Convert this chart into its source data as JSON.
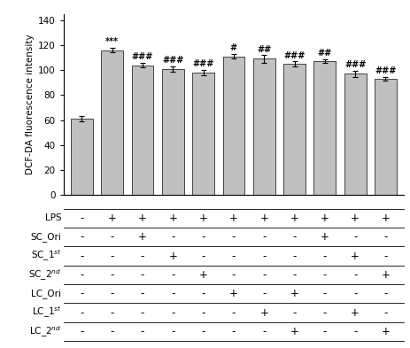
{
  "bar_values": [
    61,
    116,
    104,
    101,
    98,
    111,
    109,
    105,
    107,
    97,
    93
  ],
  "bar_errors": [
    2,
    2,
    2,
    2,
    2,
    2,
    3,
    2,
    1.5,
    2.5,
    1.5
  ],
  "bar_color": "#c0c0c0",
  "bar_edgecolor": "#444444",
  "ylabel": "DCF-DA fluorescence intensity",
  "ylim": [
    0,
    145
  ],
  "yticks": [
    0,
    20,
    40,
    60,
    80,
    100,
    120,
    140
  ],
  "annotations": [
    {
      "text": "***",
      "bar_idx": 1
    },
    {
      "text": "###",
      "bar_idx": 2
    },
    {
      "text": "###",
      "bar_idx": 3
    },
    {
      "text": "###",
      "bar_idx": 4
    },
    {
      "text": "#",
      "bar_idx": 5
    },
    {
      "text": "##",
      "bar_idx": 6
    },
    {
      "text": "###",
      "bar_idx": 7
    },
    {
      "text": "##",
      "bar_idx": 8
    },
    {
      "text": "###",
      "bar_idx": 9
    },
    {
      "text": "###",
      "bar_idx": 10
    }
  ],
  "table_rows": [
    "LPS",
    "SC_Ori",
    "SC_1$^{st}$",
    "SC_2$^{nd}$",
    "LC_Ori",
    "LC_1$^{st}$",
    "LC_2$^{nd}$"
  ],
  "table_data": [
    [
      "-",
      "+",
      "+",
      "+",
      "+",
      "+",
      "+",
      "+",
      "+",
      "+",
      "+"
    ],
    [
      "-",
      "-",
      "+",
      "-",
      "-",
      "-",
      "-",
      "-",
      "+",
      "-",
      "-"
    ],
    [
      "-",
      "-",
      "-",
      "+",
      "-",
      "-",
      "-",
      "-",
      "-",
      "+",
      "-"
    ],
    [
      "-",
      "-",
      "-",
      "-",
      "+",
      "-",
      "-",
      "-",
      "-",
      "-",
      "+"
    ],
    [
      "-",
      "-",
      "-",
      "-",
      "-",
      "+",
      "-",
      "+",
      "-",
      "-",
      "-"
    ],
    [
      "-",
      "-",
      "-",
      "-",
      "-",
      "-",
      "+",
      "-",
      "-",
      "+",
      "-"
    ],
    [
      "-",
      "-",
      "-",
      "-",
      "-",
      "-",
      "-",
      "+",
      "-",
      "-",
      "+"
    ]
  ],
  "n_bars": 11
}
